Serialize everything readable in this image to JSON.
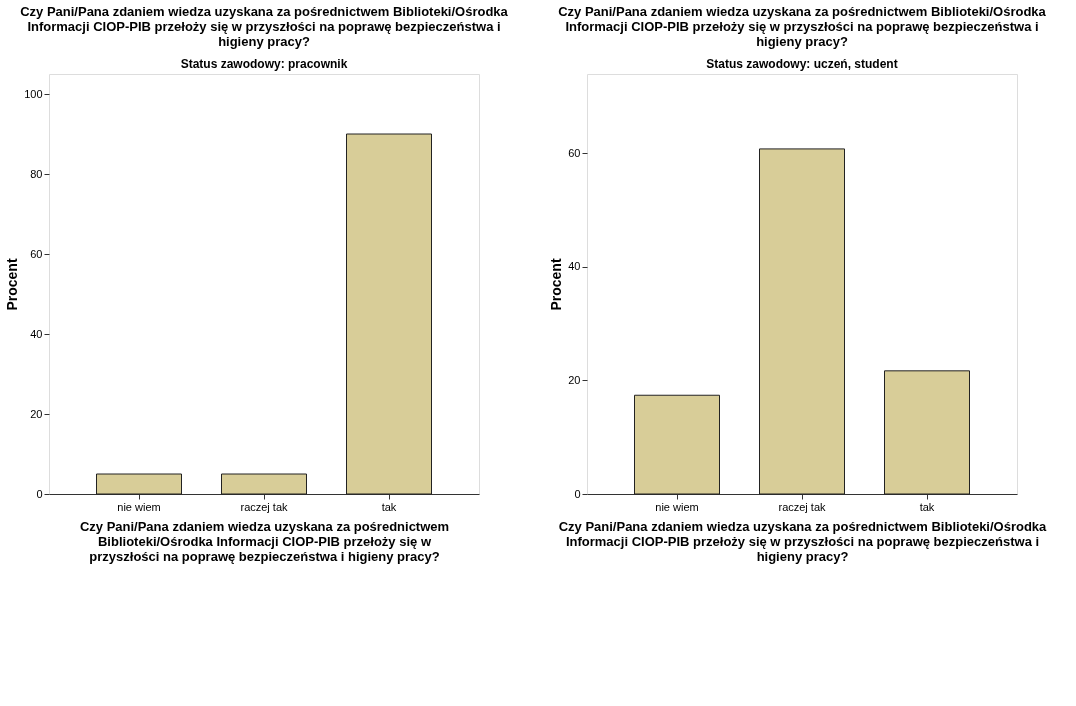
{
  "chart_data": [
    {
      "type": "bar",
      "title": "Czy Pani/Pana zdaniem wiedza uzyskana za pośrednictwem Biblioteki/Ośrodka Informacji CIOP-PIB przełoży się w przyszłości na poprawę bezpieczeństwa i higieny pracy?",
      "subtitle": "Status zawodowy: pracownik",
      "xlabel": "Czy Pani/Pana zdaniem wiedza uzyskana za pośrednictwem Biblioteki/Ośrodka Informacji CIOP-PIB przełoży się w przyszłości na poprawę bezpieczeństwa i higieny pracy?",
      "ylabel": "Procent",
      "categories": [
        "nie wiem",
        "raczej tak",
        "tak"
      ],
      "values": [
        5,
        5,
        90
      ],
      "color": "#d8cd98",
      "ylim": [
        0,
        105
      ],
      "yticks": [
        0,
        20,
        40,
        60,
        80,
        100
      ],
      "grid": false
    },
    {
      "type": "bar",
      "title": "Czy Pani/Pana zdaniem wiedza uzyskana za pośrednictwem Biblioteki/Ośrodka Informacji CIOP-PIB przełoży się w przyszłości na poprawę bezpieczeństwa i higieny pracy?",
      "subtitle": "Status zawodowy: uczeń, student",
      "xlabel": "Czy Pani/Pana zdaniem wiedza uzyskana za pośrednictwem Biblioteki/Ośrodka Informacji CIOP-PIB przełoży się w przyszłości na poprawę bezpieczeństwa i higieny pracy?",
      "ylabel": "Procent",
      "categories": [
        "nie wiem",
        "raczej tak",
        "tak"
      ],
      "values": [
        17.4,
        60.8,
        21.7
      ],
      "color": "#d8cd98",
      "ylim": [
        0,
        74
      ],
      "yticks": [
        0,
        20,
        40,
        60
      ],
      "grid": false
    }
  ]
}
